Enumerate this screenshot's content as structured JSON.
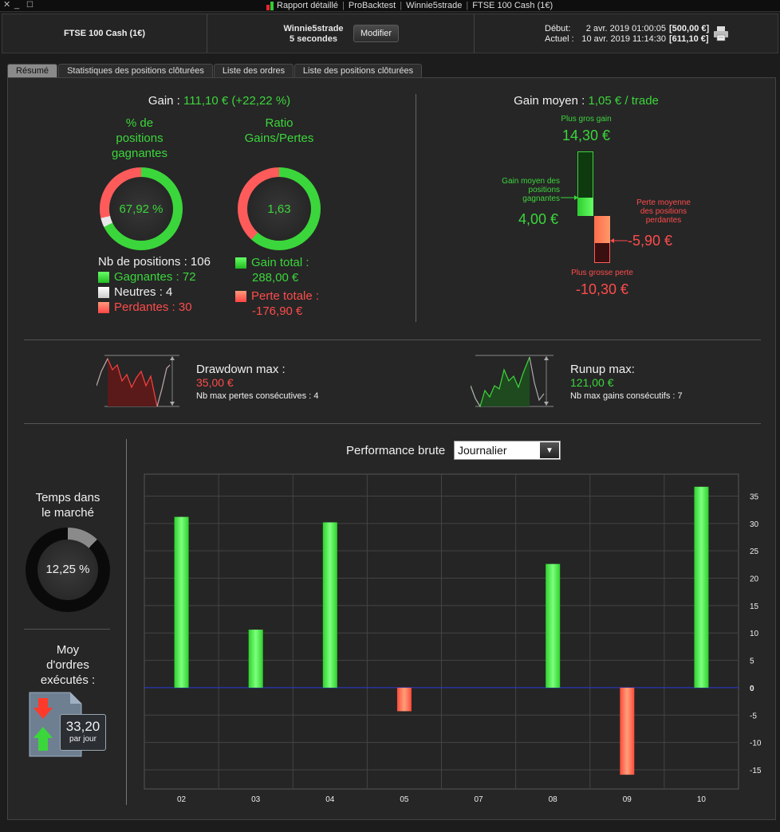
{
  "window": {
    "title_items": [
      "Rapport détaillé",
      "ProBacktest",
      "Winnie5strade",
      "FTSE 100 Cash (1€)"
    ]
  },
  "infobar": {
    "instrument": "FTSE 100 Cash (1€)",
    "strategy_name": "Winnie5strade",
    "timeframe": "5 secondes",
    "modify_label": "Modifier",
    "start_label": "Début:",
    "start_date": "2 avr. 2019 01:00:05",
    "start_amount": "[500,00 €]",
    "current_label": "Actuel :",
    "current_date": "10 avr. 2019 11:14:30",
    "current_amount": "[611,10 €]"
  },
  "tabs": [
    {
      "label": "Résumé",
      "active": true
    },
    {
      "label": "Statistiques des positions clôturées",
      "active": false
    },
    {
      "label": "Liste des ordres",
      "active": false
    },
    {
      "label": "Liste des positions clôturées",
      "active": false
    }
  ],
  "summary": {
    "gain_label": "Gain :",
    "gain_value": "111,10 € (+22,22 %)",
    "winning_pct_title_1": "% de",
    "winning_pct_title_2": "positions",
    "winning_pct_title_3": "gagnantes",
    "winning_pct_value": "67,92 %",
    "winning_fraction": 0.6792,
    "ratio_title_1": "Ratio",
    "ratio_title_2": "Gains/Pertes",
    "ratio_value": "1,63",
    "nb_positions": "Nb de positions : 106",
    "gagnantes": "Gagnantes : 72",
    "neutres": "Neutres : 4",
    "perdantes": "Perdantes : 30",
    "gain_total_label": "Gain total :",
    "gain_total_value": "288,00 €",
    "perte_totale_label": "Perte totale :",
    "perte_totale_value": "-176,90 €"
  },
  "gain_moyen": {
    "label": "Gain moyen :",
    "value": "1,05 € / trade",
    "plus_gros_gain_label": "Plus gros gain",
    "plus_gros_gain_value": "14,30 €",
    "gain_moyen_pos_label_1": "Gain moyen des",
    "gain_moyen_pos_label_2": "positions",
    "gain_moyen_pos_label_3": "gagnantes",
    "gain_moyen_pos_value": "4,00 €",
    "perte_moyenne_label_1": "Perte moyenne",
    "perte_moyenne_label_2": "des positions",
    "perte_moyenne_label_3": "perdantes",
    "perte_moyenne_value": "-5,90 €",
    "plus_grosse_perte_label": "Plus grosse perte",
    "plus_grosse_perte_value": "-10,30 €"
  },
  "drawdown": {
    "title": "Drawdown max :",
    "value": "35,00 €",
    "sub": "Nb max pertes consécutives : 4"
  },
  "runup": {
    "title": "Runup max:",
    "value": "121,00 €",
    "sub": "Nb max gains consécutifs : 7"
  },
  "temps_marche": {
    "title_1": "Temps dans",
    "title_2": "le marché",
    "value": "12,25 %",
    "fraction": 0.1225
  },
  "ordres": {
    "title_1": "Moy",
    "title_2": "d'ordres",
    "title_3": "exécutés :",
    "value": "33,20",
    "unit": "par jour"
  },
  "performance": {
    "label": "Performance brute",
    "period": "Journalier"
  },
  "colors": {
    "gain": "#3bd63b",
    "loss": "#ff4b4b",
    "zero_line": "#2a3bd6"
  },
  "chart_data": {
    "type": "bar",
    "categories": [
      "02",
      "03",
      "04",
      "05",
      "07",
      "08",
      "09",
      "10"
    ],
    "values": [
      31.2,
      10.6,
      30.2,
      -4.3,
      0,
      22.6,
      -15.9,
      36.7
    ],
    "yticks": [
      35,
      30,
      25,
      20,
      15,
      10,
      5,
      0,
      -5,
      -10,
      -15
    ],
    "ylim": [
      -18.5,
      39
    ],
    "grid": true
  }
}
